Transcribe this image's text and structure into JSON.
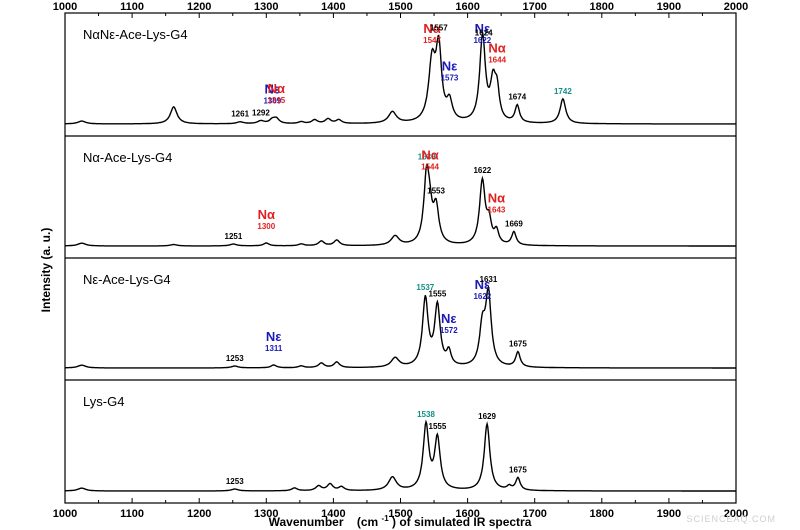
{
  "chart_data": {
    "type": "line",
    "title": "",
    "xlabel": "Wavenumber",
    "xlabel_unit": "(cm",
    "xlabel_unit_sup": "-1",
    "xlabel_suffix": ") of simulated IR spectra",
    "ylabel": "Intensity (a. u.)",
    "xlim": [
      1000,
      2000
    ],
    "xticks": [
      1000,
      1100,
      1200,
      1300,
      1400,
      1500,
      1600,
      1700,
      1800,
      1900,
      2000
    ],
    "colors": {
      "black": "#000000",
      "red": "#e02020",
      "blue": "#1a1ab8",
      "teal": "#128f83"
    },
    "panels": [
      {
        "label": "NαNε-Ace-Lys-G4",
        "peaks": [
          {
            "x": 1025,
            "h": 0.03,
            "w": 7
          },
          {
            "x": 1162,
            "h": 0.18,
            "w": 6
          },
          {
            "x": 1261,
            "h": 0.02,
            "w": 6
          },
          {
            "x": 1292,
            "h": 0.03,
            "w": 6
          },
          {
            "x": 1309,
            "h": 0.04,
            "w": 5
          },
          {
            "x": 1315,
            "h": 0.05,
            "w": 5
          },
          {
            "x": 1352,
            "h": 0.02,
            "w": 5
          },
          {
            "x": 1372,
            "h": 0.04,
            "w": 5
          },
          {
            "x": 1392,
            "h": 0.05,
            "w": 5
          },
          {
            "x": 1408,
            "h": 0.04,
            "w": 5
          },
          {
            "x": 1488,
            "h": 0.12,
            "w": 7
          },
          {
            "x": 1547,
            "h": 0.62,
            "w": 6
          },
          {
            "x": 1557,
            "h": 0.74,
            "w": 5
          },
          {
            "x": 1573,
            "h": 0.2,
            "w": 5
          },
          {
            "x": 1622,
            "h": 0.8,
            "w": 5
          },
          {
            "x": 1624,
            "h": 0.12,
            "w": 4
          },
          {
            "x": 1638,
            "h": 0.4,
            "w": 5
          },
          {
            "x": 1644,
            "h": 0.28,
            "w": 4
          },
          {
            "x": 1674,
            "h": 0.18,
            "w": 4
          },
          {
            "x": 1742,
            "h": 0.26,
            "w": 5
          }
        ],
        "annotations": [
          {
            "x": 1261,
            "text": "1261",
            "color": "black"
          },
          {
            "x": 1292,
            "text": "1292",
            "color": "black"
          },
          {
            "x": 1309,
            "text": "1309",
            "color": "blue",
            "big": "Nε"
          },
          {
            "x": 1315,
            "text": "1315",
            "color": "red",
            "big": "Nα"
          },
          {
            "x": 1547,
            "text": "1547",
            "color": "red",
            "big": "Nα"
          },
          {
            "x": 1557,
            "text": "1557",
            "color": "black"
          },
          {
            "x": 1573,
            "text": "1573",
            "color": "blue",
            "big": "Nε"
          },
          {
            "x": 1622,
            "text": "1622",
            "color": "blue",
            "big": "Nε"
          },
          {
            "x": 1624,
            "text": "1624",
            "color": "black"
          },
          {
            "x": 1644,
            "text": "1644",
            "color": "red",
            "big": "Nα"
          },
          {
            "x": 1674,
            "text": "1674",
            "color": "black"
          },
          {
            "x": 1742,
            "text": "1742",
            "color": "teal"
          }
        ]
      },
      {
        "label": "Nα-Ace-Lys-G4",
        "peaks": [
          {
            "x": 1025,
            "h": 0.03,
            "w": 7
          },
          {
            "x": 1162,
            "h": 0.015,
            "w": 6
          },
          {
            "x": 1251,
            "h": 0.02,
            "w": 6
          },
          {
            "x": 1300,
            "h": 0.03,
            "w": 5
          },
          {
            "x": 1352,
            "h": 0.02,
            "w": 5
          },
          {
            "x": 1382,
            "h": 0.05,
            "w": 5
          },
          {
            "x": 1405,
            "h": 0.06,
            "w": 5
          },
          {
            "x": 1492,
            "h": 0.1,
            "w": 7
          },
          {
            "x": 1539,
            "h": 0.74,
            "w": 5
          },
          {
            "x": 1544,
            "h": 0.2,
            "w": 4
          },
          {
            "x": 1553,
            "h": 0.38,
            "w": 5
          },
          {
            "x": 1622,
            "h": 0.68,
            "w": 5
          },
          {
            "x": 1632,
            "h": 0.22,
            "w": 4
          },
          {
            "x": 1643,
            "h": 0.14,
            "w": 4
          },
          {
            "x": 1669,
            "h": 0.14,
            "w": 4
          }
        ],
        "annotations": [
          {
            "x": 1251,
            "text": "1251",
            "color": "black"
          },
          {
            "x": 1300,
            "text": "1300",
            "color": "red",
            "big": "Nα"
          },
          {
            "x": 1539,
            "text": "1539",
            "color": "teal"
          },
          {
            "x": 1544,
            "text": "1544",
            "color": "red",
            "big": "Nα"
          },
          {
            "x": 1553,
            "text": "1553",
            "color": "black"
          },
          {
            "x": 1622,
            "text": "1622",
            "color": "black"
          },
          {
            "x": 1643,
            "text": "1643",
            "color": "red",
            "big": "Nα"
          },
          {
            "x": 1669,
            "text": "1669",
            "color": "black"
          }
        ]
      },
      {
        "label": "Nε-Ace-Lys-G4",
        "peaks": [
          {
            "x": 1025,
            "h": 0.03,
            "w": 7
          },
          {
            "x": 1253,
            "h": 0.02,
            "w": 6
          },
          {
            "x": 1311,
            "h": 0.03,
            "w": 5
          },
          {
            "x": 1352,
            "h": 0.02,
            "w": 5
          },
          {
            "x": 1382,
            "h": 0.05,
            "w": 5
          },
          {
            "x": 1405,
            "h": 0.06,
            "w": 5
          },
          {
            "x": 1492,
            "h": 0.1,
            "w": 7
          },
          {
            "x": 1537,
            "h": 0.72,
            "w": 5
          },
          {
            "x": 1555,
            "h": 0.64,
            "w": 5
          },
          {
            "x": 1572,
            "h": 0.15,
            "w": 4
          },
          {
            "x": 1622,
            "h": 0.4,
            "w": 5
          },
          {
            "x": 1631,
            "h": 0.76,
            "w": 5
          },
          {
            "x": 1675,
            "h": 0.16,
            "w": 4
          }
        ],
        "annotations": [
          {
            "x": 1253,
            "text": "1253",
            "color": "black"
          },
          {
            "x": 1311,
            "text": "1311",
            "color": "blue",
            "big": "Nε"
          },
          {
            "x": 1537,
            "text": "1537",
            "color": "teal"
          },
          {
            "x": 1555,
            "text": "1555",
            "color": "black"
          },
          {
            "x": 1572,
            "text": "1572",
            "color": "blue",
            "big": "Nε"
          },
          {
            "x": 1622,
            "text": "1622",
            "color": "blue",
            "big": "Nε"
          },
          {
            "x": 1631,
            "text": "1631",
            "color": "black"
          },
          {
            "x": 1675,
            "text": "1675",
            "color": "black"
          }
        ]
      },
      {
        "label": "Lys-G4",
        "peaks": [
          {
            "x": 1025,
            "h": 0.03,
            "w": 7
          },
          {
            "x": 1253,
            "h": 0.02,
            "w": 6
          },
          {
            "x": 1342,
            "h": 0.03,
            "w": 5
          },
          {
            "x": 1378,
            "h": 0.05,
            "w": 5
          },
          {
            "x": 1395,
            "h": 0.07,
            "w": 5
          },
          {
            "x": 1412,
            "h": 0.04,
            "w": 5
          },
          {
            "x": 1488,
            "h": 0.14,
            "w": 7
          },
          {
            "x": 1538,
            "h": 0.68,
            "w": 5
          },
          {
            "x": 1555,
            "h": 0.54,
            "w": 5
          },
          {
            "x": 1629,
            "h": 0.7,
            "w": 5
          },
          {
            "x": 1662,
            "h": 0.04,
            "w": 4
          },
          {
            "x": 1675,
            "h": 0.13,
            "w": 4
          }
        ],
        "annotations": [
          {
            "x": 1253,
            "text": "1253",
            "color": "black"
          },
          {
            "x": 1538,
            "text": "1538",
            "color": "teal"
          },
          {
            "x": 1555,
            "text": "1555",
            "color": "black"
          },
          {
            "x": 1629,
            "text": "1629",
            "color": "black"
          },
          {
            "x": 1675,
            "text": "1675",
            "color": "black"
          }
        ]
      }
    ]
  },
  "watermark": "SCIENCEAQ.COM"
}
